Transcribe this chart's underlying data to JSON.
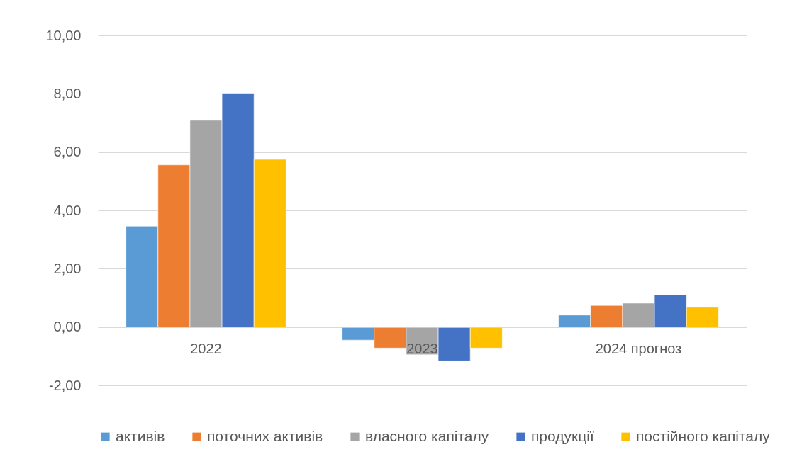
{
  "chart_data": {
    "type": "bar",
    "categories": [
      "2022",
      "2023",
      "2024 прогноз"
    ],
    "series": [
      {
        "name": "активів",
        "color": "#5b9bd5",
        "values": [
          3.46,
          -0.45,
          0.41
        ]
      },
      {
        "name": "поточних активів",
        "color": "#ed7d31",
        "values": [
          5.56,
          -0.72,
          0.74
        ]
      },
      {
        "name": "власного капіталу",
        "color": "#a5a5a5",
        "values": [
          7.09,
          -0.95,
          0.82
        ]
      },
      {
        "name": "продукції",
        "color": "#4472c4",
        "values": [
          8.02,
          -1.16,
          1.1
        ]
      },
      {
        "name": "постійного капіталу",
        "color": "#ffc000",
        "values": [
          5.75,
          -0.72,
          0.68
        ]
      }
    ],
    "ylim": [
      -2,
      10
    ],
    "yticks": [
      {
        "value": -2,
        "label": "-2,00"
      },
      {
        "value": 0,
        "label": "0,00"
      },
      {
        "value": 2,
        "label": "2,00"
      },
      {
        "value": 4,
        "label": "4,00"
      },
      {
        "value": 6,
        "label": "6,00"
      },
      {
        "value": 8,
        "label": "8,00"
      },
      {
        "value": 10,
        "label": "10,00"
      }
    ],
    "grid": "y",
    "legend": "bottom"
  }
}
